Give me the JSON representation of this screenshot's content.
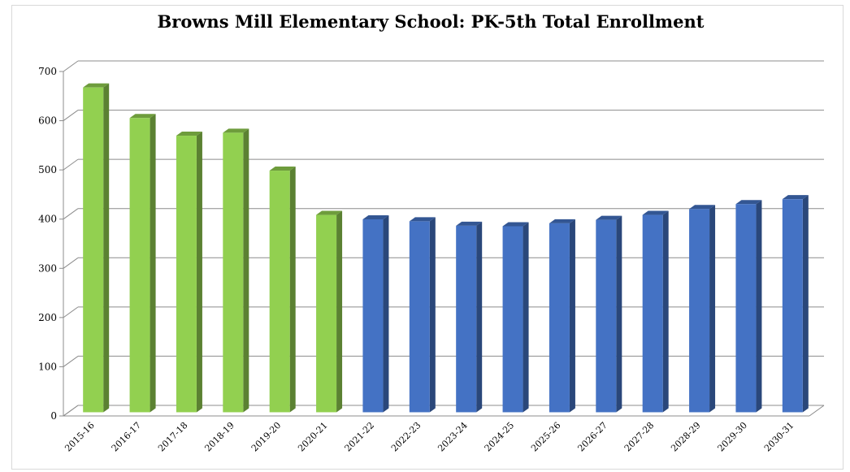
{
  "chart_data": {
    "type": "bar",
    "title": "Browns Mill Elementary School: PK-5th Total Enrollment",
    "xlabel": "",
    "ylabel": "",
    "ylim": [
      0,
      700
    ],
    "yticks": [
      0,
      100,
      200,
      300,
      400,
      500,
      600,
      700
    ],
    "categories": [
      "2015-16",
      "2016-17",
      "2017-18",
      "2018-19",
      "2019-20",
      "2020-21",
      "2021-22",
      "2022-23",
      "2023-24",
      "2024-25",
      "2025-26",
      "2026-27",
      "2027-28",
      "2028-29",
      "2029-30",
      "2030-31"
    ],
    "values": [
      660,
      598,
      562,
      568,
      491,
      401,
      392,
      388,
      379,
      378,
      384,
      391,
      401,
      413,
      423,
      433
    ],
    "bar_colors": [
      "#92d050",
      "#92d050",
      "#92d050",
      "#92d050",
      "#92d050",
      "#92d050",
      "#4472c4",
      "#4472c4",
      "#4472c4",
      "#4472c4",
      "#4472c4",
      "#4472c4",
      "#4472c4",
      "#4472c4",
      "#4472c4",
      "#4472c4"
    ],
    "grid": true,
    "style": "3d-column"
  }
}
